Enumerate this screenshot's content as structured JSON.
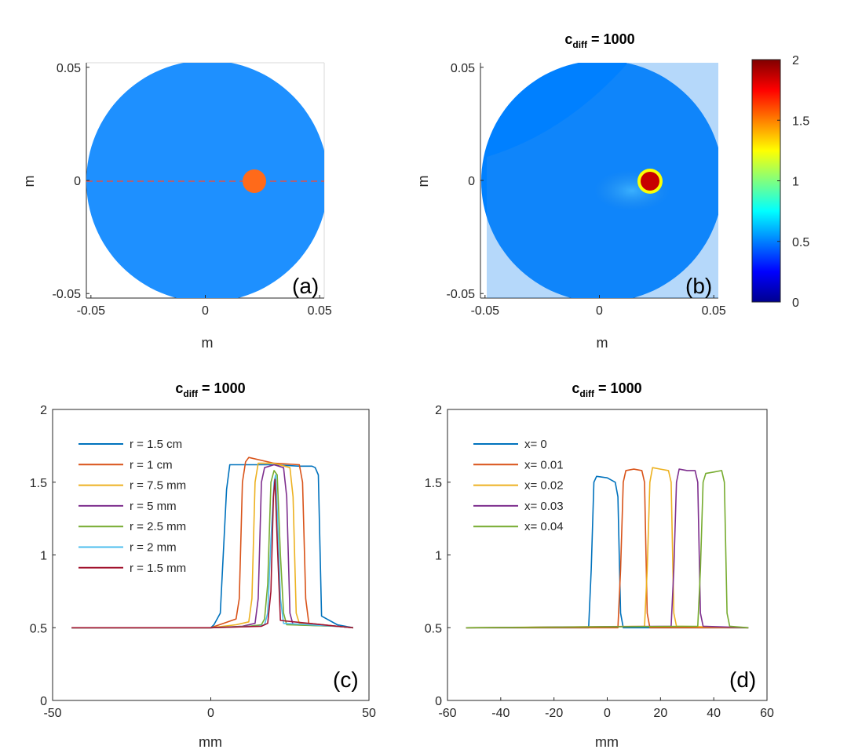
{
  "figure": {
    "axis_unit_label": "m",
    "profile_axis_label": "mm"
  },
  "chart_data": [
    {
      "id": "a",
      "type": "heatmap",
      "panel_label": "(a)",
      "title": "",
      "xlabel": "m",
      "ylabel": "m",
      "xlim": [
        -0.052,
        0.052
      ],
      "ylim": [
        -0.052,
        0.052
      ],
      "xticks": [
        -0.05,
        0,
        0.05
      ],
      "xtick_labels": [
        "-0.05",
        "0",
        "0.05"
      ],
      "yticks": [
        -0.05,
        0,
        0.05
      ],
      "ytick_labels": [
        "-0.05",
        "0",
        "0.05"
      ],
      "domain_radius": 0.05,
      "background_color": "#1e90ff",
      "inclusion": {
        "cx": 0.02,
        "cy": 0,
        "r": 0.005,
        "color": "#ff6a1a"
      },
      "profile_line": {
        "y": 0,
        "color": "#d9534f"
      }
    },
    {
      "id": "b",
      "type": "heatmap",
      "panel_label": "(b)",
      "title_main": "c",
      "title_sub": "diff",
      "title_rest": " = 1000",
      "xlabel": "m",
      "ylabel": "m",
      "xlim": [
        -0.052,
        0.052
      ],
      "ylim": [
        -0.052,
        0.052
      ],
      "xticks": [
        -0.05,
        0,
        0.05
      ],
      "xtick_labels": [
        "-0.05",
        "0",
        "0.05"
      ],
      "yticks": [
        -0.05,
        0,
        0.05
      ],
      "ytick_labels": [
        "-0.05",
        "0",
        "0.05"
      ],
      "domain_radius": 0.05,
      "background_value": 0.5,
      "inclusion": {
        "cx": 0.02,
        "cy": 0,
        "r": 0.005,
        "value": 2
      },
      "colorbar": {
        "range": [
          0,
          2
        ],
        "ticks": [
          0,
          0.5,
          1,
          1.5,
          2
        ],
        "tick_labels": [
          "0",
          "0.5",
          "1",
          "1.5",
          "2"
        ],
        "colormap": "jet"
      }
    },
    {
      "id": "c",
      "type": "line",
      "panel_label": "(c)",
      "title_main": "c",
      "title_sub": "diff",
      "title_rest": " = 1000",
      "xlabel": "mm",
      "ylabel": "",
      "xlim": [
        -50,
        50
      ],
      "ylim": [
        0,
        2
      ],
      "xticks": [
        -50,
        0,
        50
      ],
      "xtick_labels": [
        "-50",
        "0",
        "50"
      ],
      "yticks": [
        0,
        0.5,
        1,
        1.5,
        2
      ],
      "ytick_labels": [
        "0",
        "0.5",
        "1",
        "1.5",
        "2"
      ],
      "legend_position": "top-left",
      "series": [
        {
          "name": "r = 1.5 cm",
          "color": "#0072bd",
          "x": [
            -44,
            0,
            1,
            3,
            5,
            6,
            12,
            20,
            28,
            32,
            33,
            34,
            35,
            40,
            45
          ],
          "y": [
            0.5,
            0.5,
            0.52,
            0.6,
            1.45,
            1.62,
            1.62,
            1.62,
            1.61,
            1.61,
            1.6,
            1.55,
            0.58,
            0.52,
            0.5
          ]
        },
        {
          "name": "r = 1 cm",
          "color": "#d95319",
          "x": [
            -44,
            0,
            4,
            8,
            9,
            10,
            11,
            12,
            20,
            28,
            29,
            30,
            31,
            40,
            45
          ],
          "y": [
            0.5,
            0.5,
            0.53,
            0.56,
            0.7,
            1.5,
            1.64,
            1.67,
            1.63,
            1.62,
            1.5,
            0.7,
            0.53,
            0.51,
            0.5
          ]
        },
        {
          "name": "r = 7.5 mm",
          "color": "#edb120",
          "x": [
            -44,
            0,
            8,
            12,
            13,
            14,
            15,
            20,
            25,
            26,
            27,
            28,
            40,
            45
          ],
          "y": [
            0.5,
            0.5,
            0.52,
            0.54,
            0.7,
            1.5,
            1.63,
            1.63,
            1.6,
            1.4,
            0.6,
            0.53,
            0.51,
            0.5
          ]
        },
        {
          "name": "r = 5 mm",
          "color": "#7e2f8e",
          "x": [
            -44,
            0,
            10,
            14,
            15,
            16,
            17,
            20,
            23,
            24,
            25,
            26,
            40,
            45
          ],
          "y": [
            0.5,
            0.5,
            0.51,
            0.53,
            0.7,
            1.5,
            1.6,
            1.62,
            1.6,
            1.4,
            0.6,
            0.52,
            0.51,
            0.5
          ]
        },
        {
          "name": "r = 2.5 mm",
          "color": "#77ac30",
          "x": [
            -44,
            0,
            12,
            16,
            17,
            18,
            19,
            20,
            21,
            22,
            23,
            24,
            40,
            45
          ],
          "y": [
            0.5,
            0.5,
            0.51,
            0.52,
            0.56,
            0.8,
            1.5,
            1.58,
            1.55,
            1.0,
            0.6,
            0.52,
            0.51,
            0.5
          ]
        },
        {
          "name": "r = 2 mm",
          "color": "#4dbeee",
          "x": [
            -44,
            0,
            15,
            17,
            18,
            19,
            20,
            20.5,
            21,
            22,
            23,
            40,
            45
          ],
          "y": [
            0.5,
            0.5,
            0.51,
            0.52,
            0.6,
            1.1,
            1.5,
            1.55,
            1.3,
            0.7,
            0.53,
            0.51,
            0.5
          ]
        },
        {
          "name": "r = 1.5 mm",
          "color": "#a2142f",
          "x": [
            -44,
            0,
            16,
            18,
            19,
            19.8,
            20.3,
            21,
            22,
            40,
            45
          ],
          "y": [
            0.5,
            0.5,
            0.51,
            0.53,
            0.75,
            1.4,
            1.52,
            1.1,
            0.55,
            0.51,
            0.5
          ]
        }
      ]
    },
    {
      "id": "d",
      "type": "line",
      "panel_label": "(d)",
      "title_main": "c",
      "title_sub": "diff",
      "title_rest": " = 1000",
      "xlabel": "mm",
      "ylabel": "",
      "xlim": [
        -60,
        60
      ],
      "ylim": [
        0,
        2
      ],
      "xticks": [
        -60,
        -40,
        -20,
        0,
        20,
        40,
        60
      ],
      "xtick_labels": [
        "-60",
        "-40",
        "-20",
        "0",
        "20",
        "40",
        "60"
      ],
      "yticks": [
        0,
        0.5,
        1,
        1.5,
        2
      ],
      "ytick_labels": [
        "0",
        "0.5",
        "1",
        "1.5",
        "2"
      ],
      "legend_position": "top-left",
      "series": [
        {
          "name": "x= 0",
          "color": "#0072bd",
          "x": [
            -53,
            -7,
            -6,
            -5,
            -4,
            0,
            3,
            4,
            5,
            6,
            53
          ],
          "y": [
            0.5,
            0.5,
            0.9,
            1.5,
            1.54,
            1.53,
            1.5,
            1.4,
            0.6,
            0.5,
            0.5
          ]
        },
        {
          "name": "x= 0.01",
          "color": "#d95319",
          "x": [
            -53,
            4,
            5,
            6,
            7,
            10,
            13,
            14,
            15,
            16,
            53
          ],
          "y": [
            0.5,
            0.5,
            0.9,
            1.5,
            1.58,
            1.59,
            1.58,
            1.5,
            0.6,
            0.5,
            0.5
          ]
        },
        {
          "name": "x= 0.02",
          "color": "#edb120",
          "x": [
            -53,
            14,
            15,
            16,
            17,
            20,
            23,
            24,
            25,
            26,
            53
          ],
          "y": [
            0.5,
            0.51,
            0.9,
            1.5,
            1.6,
            1.59,
            1.58,
            1.5,
            0.6,
            0.51,
            0.5
          ]
        },
        {
          "name": "x= 0.03",
          "color": "#7e2f8e",
          "x": [
            -53,
            24,
            25,
            26,
            27,
            30,
            33,
            34,
            35,
            36,
            53
          ],
          "y": [
            0.5,
            0.51,
            0.9,
            1.5,
            1.59,
            1.58,
            1.58,
            1.5,
            0.6,
            0.51,
            0.5
          ]
        },
        {
          "name": "x= 0.04",
          "color": "#77ac30",
          "x": [
            -53,
            34,
            35,
            36,
            37,
            40,
            43,
            44,
            45,
            46,
            53
          ],
          "y": [
            0.5,
            0.51,
            0.9,
            1.5,
            1.56,
            1.57,
            1.58,
            1.5,
            0.6,
            0.51,
            0.5
          ]
        }
      ]
    }
  ]
}
